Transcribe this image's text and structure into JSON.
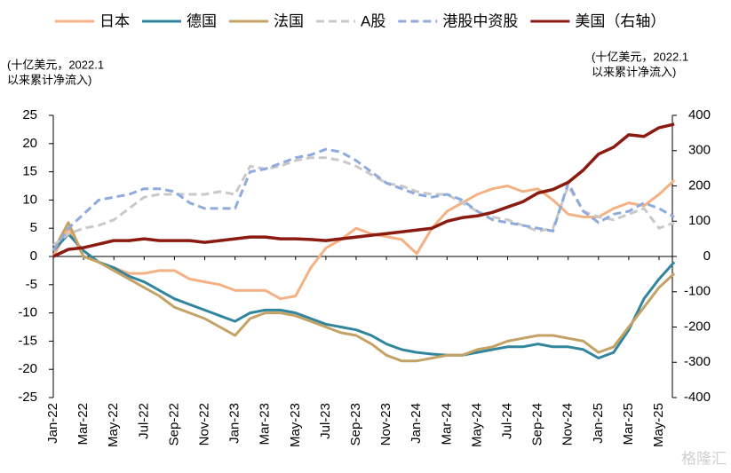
{
  "chart_data": {
    "type": "line",
    "ylabel": [
      "(十亿美元，2022.1",
      "以来累计净流入)"
    ],
    "y2label": [
      "(十亿美元，2022.1",
      "以来累计净流入)"
    ],
    "watermark": "格隆汇",
    "categories": [
      "Jan-22",
      null,
      "Mar-22",
      null,
      "May-22",
      null,
      "Jul-22",
      null,
      "Sep-22",
      null,
      "Nov-22",
      null,
      "Jan-23",
      null,
      "Mar-23",
      null,
      "May-23",
      null,
      "Jul-23",
      null,
      "Sep-23",
      null,
      "Nov-23",
      null,
      "Jan-24",
      null,
      "Mar-24",
      null,
      "May-24",
      null,
      "Jul-24",
      null,
      "Sep-24",
      null,
      "Nov-24",
      null,
      "Jan-25",
      null,
      "Mar-25",
      null,
      "May-25",
      null
    ],
    "ylim": [
      -25,
      25
    ],
    "yticks": [
      -25,
      -20,
      -15,
      -10,
      -5,
      0,
      5,
      10,
      15,
      20,
      25
    ],
    "y2lim": [
      -400,
      400
    ],
    "y2ticks": [
      -400,
      -300,
      -200,
      -100,
      0,
      100,
      200,
      300,
      400
    ],
    "series": [
      {
        "name": "日本",
        "color": "#f4b183",
        "dash": false,
        "values": [
          0,
          5,
          0,
          -1,
          -2,
          -3,
          -3,
          -2.5,
          -2.5,
          -4,
          -4.5,
          -5,
          -6,
          -6,
          -6,
          -7.5,
          -7,
          -2,
          1.5,
          3,
          5,
          4,
          3.5,
          3,
          0.5,
          5,
          8,
          9.5,
          11,
          12,
          12.5,
          11.5,
          12,
          10,
          7.5,
          7,
          7,
          8.5,
          9.5,
          9,
          11,
          13.5
        ]
      },
      {
        "name": "德国",
        "color": "#31859c",
        "dash": false,
        "values": [
          1,
          4,
          1,
          -1,
          -2,
          -3.5,
          -4.5,
          -6,
          -7.5,
          -8.5,
          -9.5,
          -10.5,
          -11.5,
          -10,
          -9.5,
          -9.5,
          -10,
          -11,
          -12,
          -12.5,
          -13,
          -14,
          -15.5,
          -16.5,
          -17,
          -17.3,
          -17.5,
          -17.5,
          -17,
          -16.5,
          -16,
          -16,
          -15.5,
          -16,
          -16,
          -16.5,
          -18,
          -17,
          -13,
          -7.5,
          -4,
          -1
        ]
      },
      {
        "name": "法国",
        "color": "#c4a265",
        "dash": false,
        "values": [
          1,
          6,
          0,
          -1,
          -2.5,
          -4,
          -5.5,
          -7,
          -9,
          -10,
          -11,
          -12.5,
          -14,
          -11,
          -10,
          -10,
          -10.5,
          -11.5,
          -12.5,
          -13.5,
          -14,
          -15.5,
          -17.5,
          -18.5,
          -18.5,
          -18,
          -17.5,
          -17.5,
          -16.5,
          -16,
          -15,
          -14.5,
          -14,
          -14,
          -14.5,
          -15,
          -17,
          -16,
          -12.5,
          -9,
          -5.5,
          -3
        ]
      },
      {
        "name": "A股",
        "color": "#c9c9c9",
        "dash": true,
        "values": [
          2,
          4,
          5,
          5.5,
          6.5,
          8.5,
          10.5,
          11,
          11,
          11,
          11,
          11.5,
          11,
          16,
          15.5,
          16,
          17,
          17.5,
          17.5,
          17,
          16,
          14.5,
          13,
          12.5,
          11.5,
          11,
          11,
          9.5,
          8,
          7,
          6.5,
          5.5,
          4.5,
          5,
          12.5,
          8,
          7,
          6.5,
          7.5,
          8.5,
          5,
          6
        ]
      },
      {
        "name": "港股中资股",
        "color": "#8faadc",
        "dash": true,
        "values": [
          1,
          5,
          7.5,
          10,
          10.5,
          11,
          12,
          12,
          11.5,
          9.5,
          8.5,
          8.5,
          8.5,
          15,
          15.5,
          16.5,
          17.5,
          18,
          19,
          18.5,
          17,
          15,
          13,
          12,
          11,
          10.5,
          11,
          10,
          8,
          6.5,
          6,
          5.5,
          5,
          4.5,
          13,
          8,
          6,
          7.5,
          8,
          9.5,
          8.5,
          7
        ]
      },
      {
        "name": "美国（右轴）",
        "color": "#8b1a10",
        "dash": false,
        "axis": "y2",
        "values": [
          0,
          20,
          25,
          35,
          45,
          45,
          50,
          45,
          45,
          45,
          40,
          45,
          50,
          55,
          55,
          50,
          50,
          48,
          45,
          50,
          55,
          60,
          65,
          70,
          75,
          80,
          100,
          110,
          115,
          125,
          140,
          155,
          180,
          190,
          210,
          245,
          290,
          310,
          345,
          340,
          365,
          375
        ]
      }
    ]
  }
}
